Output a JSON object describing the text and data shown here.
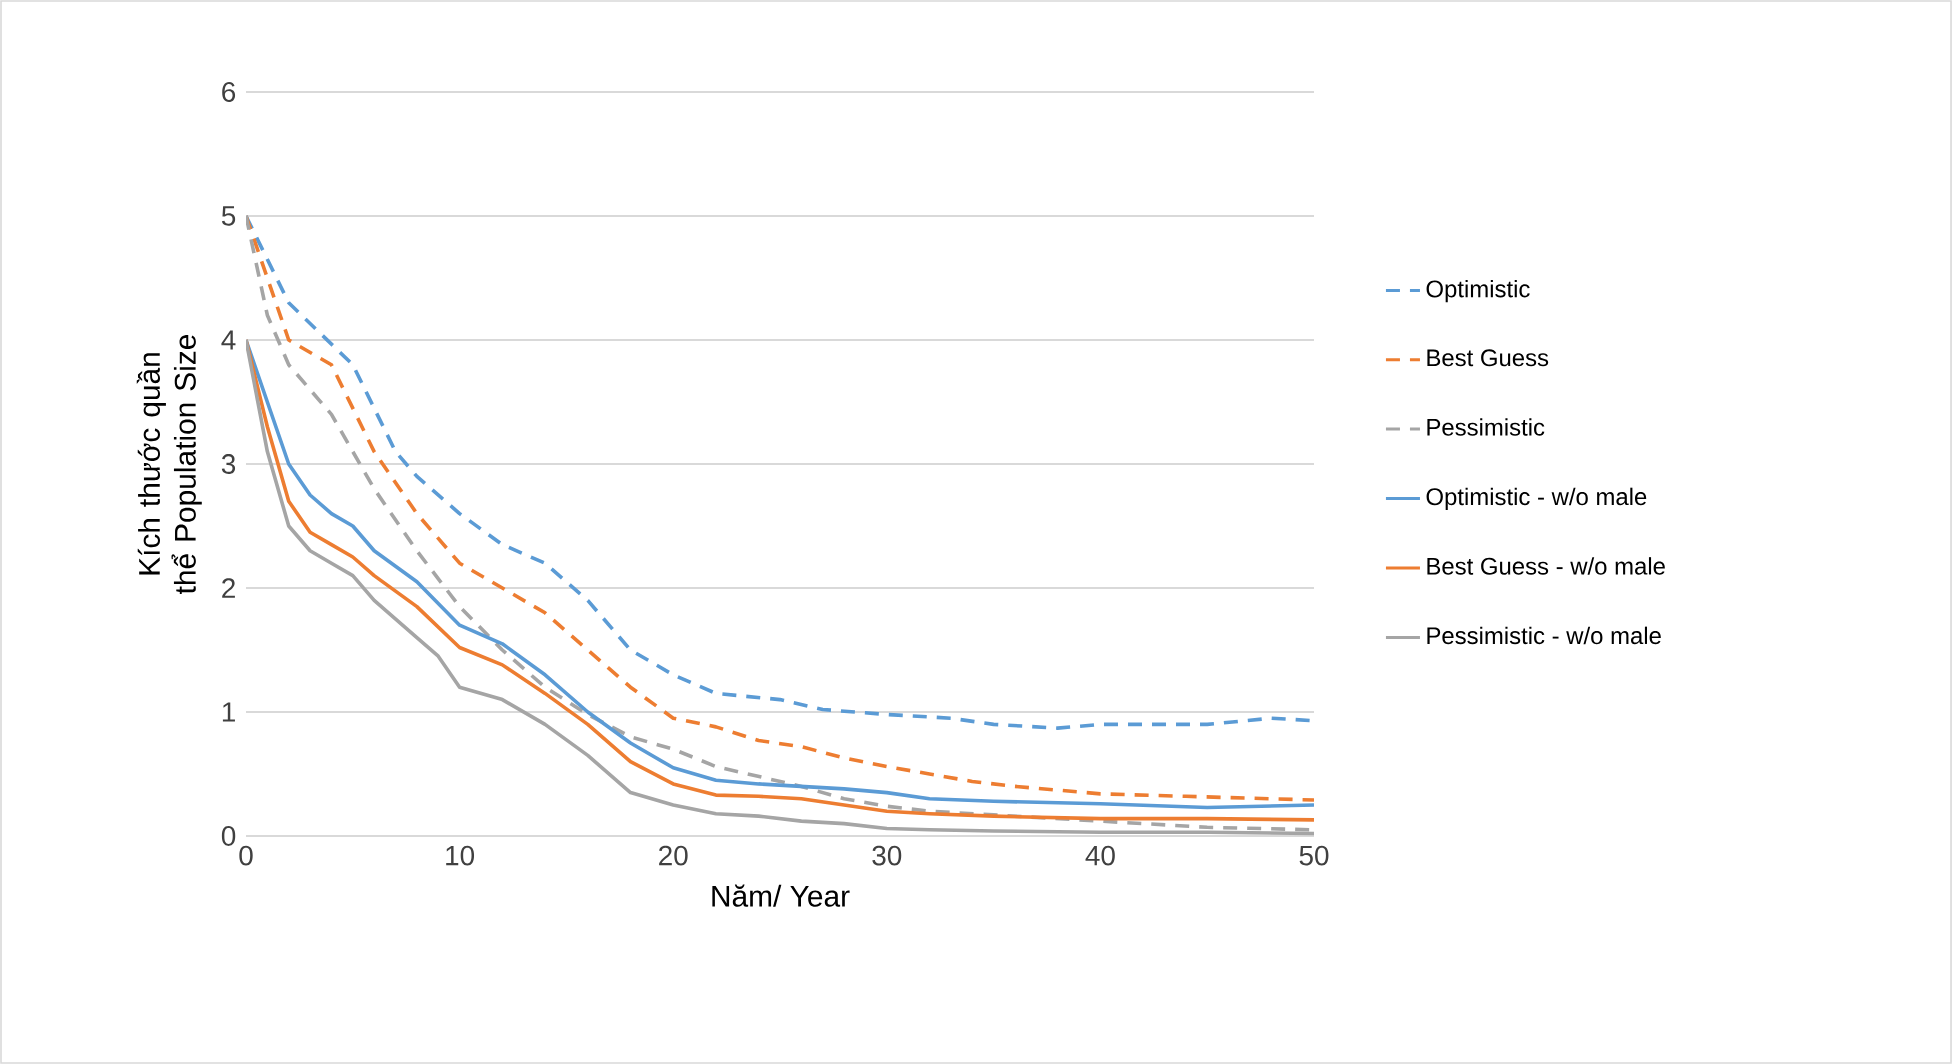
{
  "chart_data": {
    "type": "line",
    "xlabel": "Năm/ Year",
    "ylabel": "Kích thước quần thể Population Size",
    "xlim": [
      0,
      50
    ],
    "xticks": [
      0,
      10,
      20,
      30,
      40,
      50
    ],
    "ylim": [
      0,
      6
    ],
    "yticks": [
      0,
      1,
      2,
      3,
      4,
      5,
      6
    ],
    "grid": "y",
    "legend": "right",
    "marker": "none",
    "series": [
      {
        "name": "Optimistic",
        "color": "#5b9bd5",
        "line_style": "dashed",
        "x": [
          0,
          2,
          5,
          7,
          8,
          10,
          12,
          14,
          16,
          18,
          20,
          22,
          25,
          27,
          30,
          33,
          35,
          38,
          40,
          42,
          45,
          48,
          50
        ],
        "values": [
          5,
          4.3,
          3.8,
          3.1,
          2.9,
          2.6,
          2.35,
          2.2,
          1.9,
          1.5,
          1.3,
          1.15,
          1.1,
          1.02,
          0.98,
          0.95,
          0.9,
          0.87,
          0.9,
          0.9,
          0.9,
          0.95,
          0.93
        ]
      },
      {
        "name": "Best Guess",
        "color": "#ed7d31",
        "line_style": "dashed",
        "x": [
          0,
          2,
          4,
          6,
          8,
          10,
          12,
          14,
          16,
          18,
          20,
          22,
          24,
          26,
          28,
          30,
          32,
          34,
          36,
          38,
          40,
          44,
          48,
          50
        ],
        "values": [
          5,
          4.0,
          3.8,
          3.1,
          2.6,
          2.2,
          2.0,
          1.8,
          1.5,
          1.2,
          0.95,
          0.88,
          0.77,
          0.72,
          0.63,
          0.56,
          0.5,
          0.44,
          0.4,
          0.37,
          0.34,
          0.32,
          0.3,
          0.29
        ]
      },
      {
        "name": "Pessimistic",
        "color": "#a5a5a5",
        "line_style": "dashed",
        "x": [
          0,
          1,
          2,
          4,
          6,
          8,
          10,
          12,
          14,
          16,
          18,
          20,
          22,
          24,
          26,
          28,
          30,
          32,
          35,
          40,
          45,
          50
        ],
        "values": [
          5,
          4.2,
          3.8,
          3.4,
          2.8,
          2.3,
          1.85,
          1.5,
          1.2,
          0.98,
          0.8,
          0.7,
          0.56,
          0.48,
          0.4,
          0.3,
          0.24,
          0.2,
          0.17,
          0.12,
          0.07,
          0.05
        ]
      },
      {
        "name": "Optimistic - w/o male",
        "color": "#5b9bd5",
        "line_style": "solid",
        "x": [
          0,
          1,
          2,
          3,
          4,
          5,
          6,
          8,
          10,
          12,
          14,
          16,
          18,
          20,
          22,
          24,
          26,
          28,
          30,
          32,
          35,
          40,
          45,
          50
        ],
        "values": [
          4,
          3.5,
          3.0,
          2.75,
          2.6,
          2.5,
          2.3,
          2.05,
          1.7,
          1.55,
          1.3,
          1.0,
          0.75,
          0.55,
          0.45,
          0.42,
          0.4,
          0.38,
          0.35,
          0.3,
          0.28,
          0.26,
          0.23,
          0.25
        ]
      },
      {
        "name": "Best Guess - w/o male",
        "color": "#ed7d31",
        "line_style": "solid",
        "x": [
          0,
          1,
          2,
          3,
          4,
          5,
          6,
          8,
          10,
          12,
          14,
          16,
          18,
          20,
          22,
          24,
          26,
          28,
          30,
          32,
          35,
          40,
          45,
          50
        ],
        "values": [
          4,
          3.3,
          2.7,
          2.45,
          2.35,
          2.25,
          2.1,
          1.85,
          1.52,
          1.38,
          1.15,
          0.9,
          0.6,
          0.42,
          0.33,
          0.32,
          0.3,
          0.25,
          0.2,
          0.18,
          0.16,
          0.14,
          0.14,
          0.13
        ]
      },
      {
        "name": "Pessimistic - w/o male",
        "color": "#a5a5a5",
        "line_style": "solid",
        "x": [
          0,
          1,
          2,
          3,
          4,
          5,
          6,
          8,
          9,
          10,
          12,
          14,
          16,
          18,
          20,
          22,
          24,
          26,
          28,
          30,
          32,
          35,
          40,
          45,
          50
        ],
        "values": [
          4,
          3.1,
          2.5,
          2.3,
          2.2,
          2.1,
          1.9,
          1.6,
          1.45,
          1.2,
          1.1,
          0.9,
          0.65,
          0.35,
          0.25,
          0.18,
          0.16,
          0.12,
          0.1,
          0.06,
          0.05,
          0.04,
          0.03,
          0.03,
          0.02
        ]
      }
    ]
  }
}
